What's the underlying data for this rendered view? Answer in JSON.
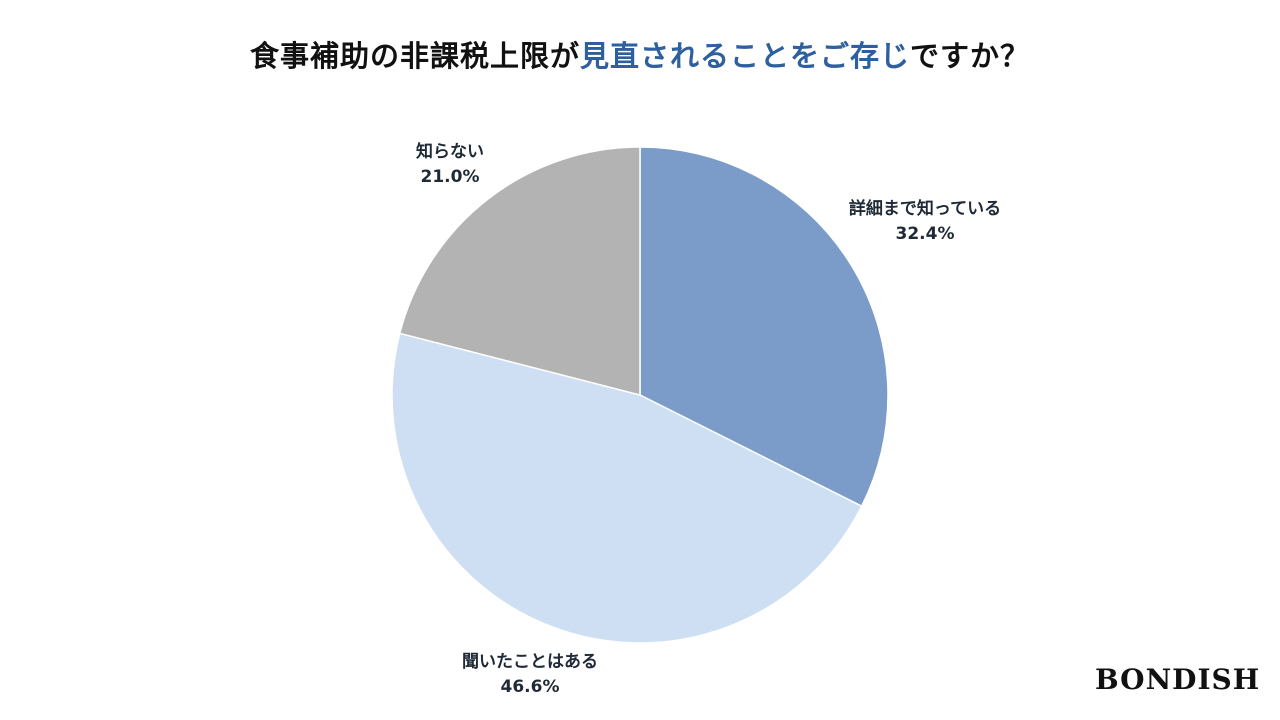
{
  "chart_data": {
    "type": "pie",
    "title_parts": [
      "食事補助の非課税上限が",
      "見直されることをご存じ",
      "ですか？"
    ],
    "labels": [
      "詳細まで知っている",
      "聞いたことはある",
      "知らない"
    ],
    "values": [
      32.4,
      46.6,
      21.0
    ],
    "value_labels": [
      "32.4%",
      "46.6%",
      "21.0%"
    ],
    "colors": [
      "#7b9cc8",
      "#cfdff3",
      "#b3b3b3"
    ],
    "start": "top",
    "direction": "clockwise",
    "legend": "none"
  },
  "brand": {
    "logo": "BONDISH"
  },
  "colors": {
    "title_highlight": "#2e5f9e"
  }
}
